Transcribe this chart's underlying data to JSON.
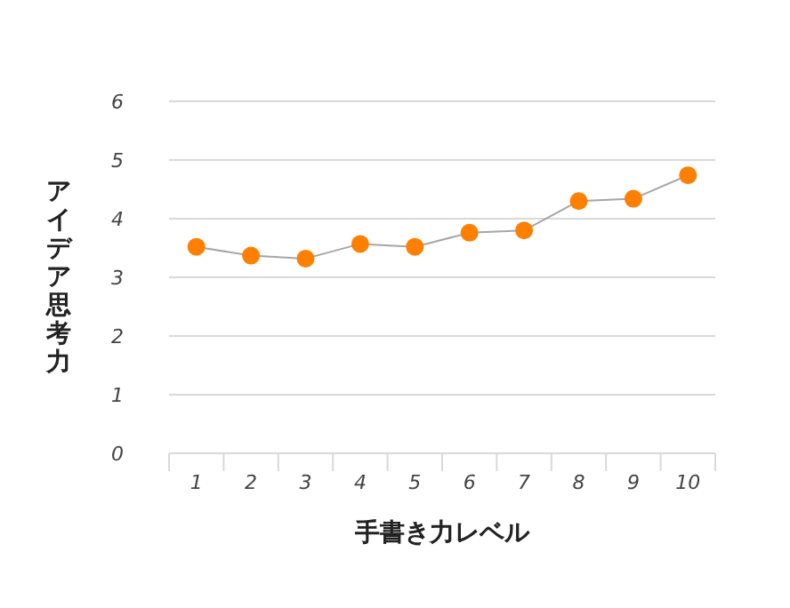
{
  "chart_data": {
    "type": "line",
    "xlabel": "手書き力レベル",
    "ylabel": "アイデア思考力",
    "categories": [
      "1",
      "2",
      "3",
      "4",
      "5",
      "6",
      "7",
      "8",
      "9",
      "10"
    ],
    "series": [
      {
        "color": "#ff8000",
        "values": [
          3.52,
          3.37,
          3.32,
          3.57,
          3.52,
          3.76,
          3.8,
          4.3,
          4.34,
          4.74
        ]
      }
    ],
    "ylim": [
      0,
      6
    ],
    "yticks": [
      0,
      1,
      2,
      3,
      4,
      5,
      6
    ],
    "grid": "y",
    "marker": "circle"
  }
}
